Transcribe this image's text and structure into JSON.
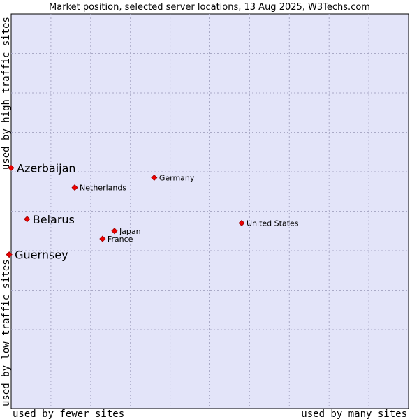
{
  "chart_data": {
    "type": "scatter",
    "title": "Market position, selected server locations, 13 Aug 2025, W3Techs.com",
    "x_axis": {
      "low_label": "used by fewer sites",
      "high_label": "used by many sites"
    },
    "y_axis": {
      "low_label": "used by low traffic sites",
      "high_label": "used by high traffic sites"
    },
    "grid": true,
    "colors": {
      "plot_background": "#e3e4f9",
      "grid": "#a9a9c6",
      "marker": "#ee0000",
      "marker_stroke": "#990000"
    },
    "points": [
      {
        "label": "Netherlands",
        "x": 0.16,
        "y": 0.56,
        "highlight": false
      },
      {
        "label": "Germany",
        "x": 0.36,
        "y": 0.585,
        "highlight": false
      },
      {
        "label": "United States",
        "x": 0.58,
        "y": 0.47,
        "highlight": false
      },
      {
        "label": "Japan",
        "x": 0.26,
        "y": 0.45,
        "highlight": false
      },
      {
        "label": "France",
        "x": 0.23,
        "y": 0.43,
        "highlight": false
      },
      {
        "label": "Azerbaijan",
        "x": 0.0,
        "y": 0.61,
        "highlight": true
      },
      {
        "label": "Belarus",
        "x": 0.04,
        "y": 0.48,
        "highlight": true
      },
      {
        "label": "Guernsey",
        "x": -0.005,
        "y": 0.39,
        "highlight": true
      }
    ]
  }
}
